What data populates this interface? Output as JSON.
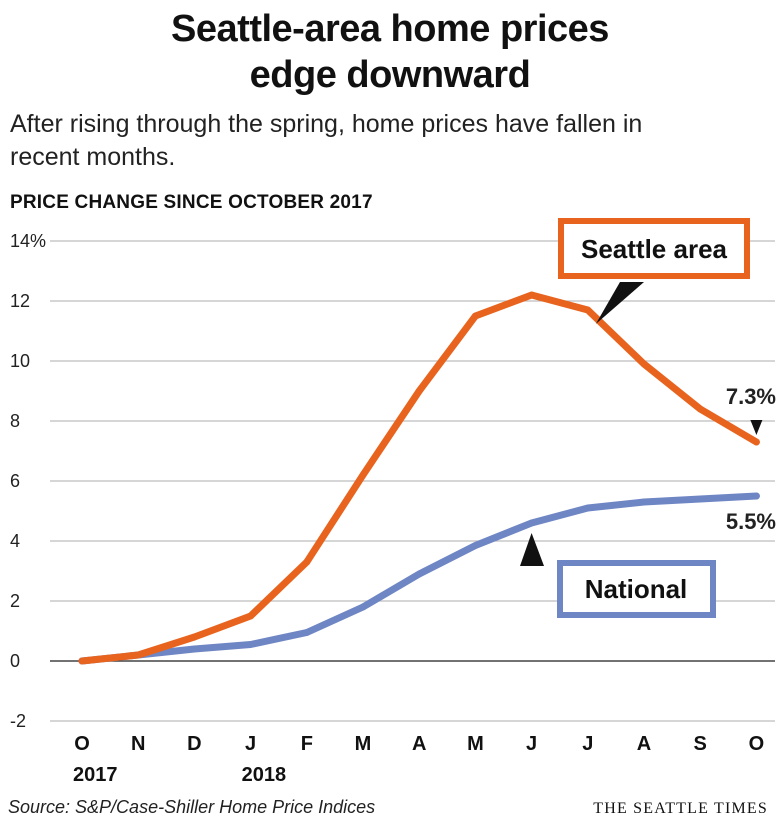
{
  "title_line1": "Seattle-area home prices",
  "title_line2": "edge downward",
  "subtitle": "After rising through the spring, home prices have fallen in recent months.",
  "axis_heading": "PRICE CHANGE SINCE OCTOBER 2017",
  "source": "Source: S&P/Case-Shiller Home Price Indices",
  "credit": "THE SEATTLE TIMES",
  "colors": {
    "seattle": "#e8641e",
    "national": "#6f86c4",
    "grid": "#bdbdbd",
    "zero": "#444444"
  },
  "chart_data": {
    "type": "line",
    "title": "Seattle-area home prices edge downward",
    "ylabel": "PRICE CHANGE SINCE OCTOBER 2017",
    "ylim": [
      -2,
      14
    ],
    "yticks": [
      "-2",
      "0",
      "2",
      "4",
      "6",
      "8",
      "10",
      "12",
      "14%"
    ],
    "categories": [
      "O",
      "N",
      "D",
      "J",
      "F",
      "M",
      "A",
      "M",
      "J",
      "J",
      "A",
      "S",
      "O"
    ],
    "year_labels": [
      {
        "index": 0,
        "label": "2017"
      },
      {
        "index": 3,
        "label": "2018"
      }
    ],
    "grid": true,
    "series": [
      {
        "name": "Seattle area",
        "color": "#e8641e",
        "values": [
          0,
          0.2,
          0.8,
          1.5,
          3.3,
          6.2,
          9.0,
          11.5,
          12.2,
          11.7,
          9.9,
          8.4,
          7.3
        ],
        "end_label": "7.3%"
      },
      {
        "name": "National",
        "color": "#6f86c4",
        "values": [
          0,
          0.2,
          0.4,
          0.55,
          0.95,
          1.8,
          2.9,
          3.85,
          4.6,
          5.1,
          5.3,
          5.4,
          5.5
        ],
        "end_label": "5.5%"
      }
    ]
  }
}
